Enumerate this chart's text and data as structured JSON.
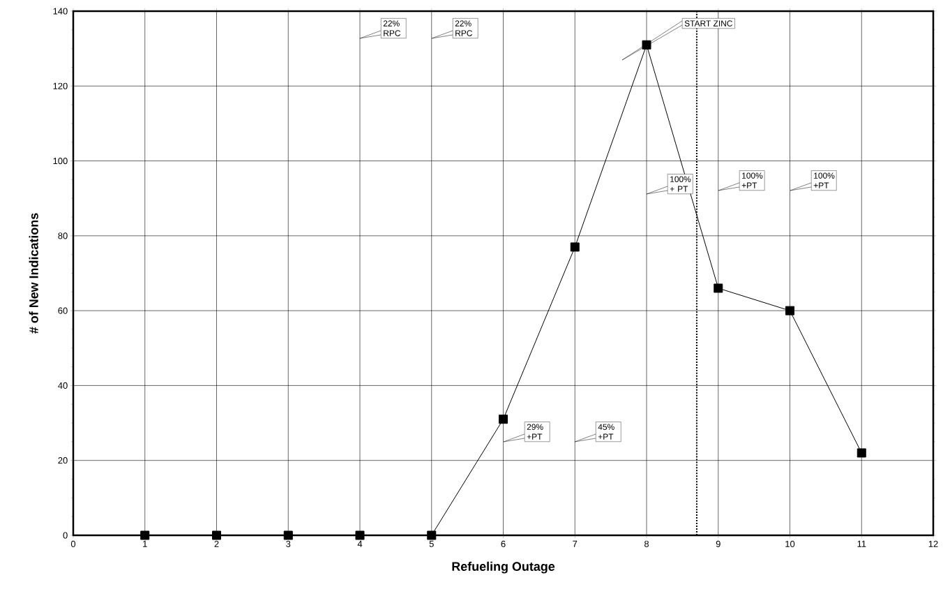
{
  "chart_data": {
    "type": "line",
    "xlabel": "Refueling Outage",
    "ylabel": "# of New Indications",
    "x": [
      1,
      2,
      3,
      4,
      5,
      6,
      7,
      8,
      9,
      10,
      11
    ],
    "series": [
      {
        "color": "#000000",
        "values": [
          0,
          0,
          0,
          0,
          0,
          31,
          77,
          131,
          66,
          60,
          22
        ]
      }
    ],
    "xlim": [
      0,
      12
    ],
    "xticks": [
      0,
      1,
      2,
      3,
      4,
      5,
      6,
      7,
      8,
      9,
      10,
      11,
      12
    ],
    "ylim": [
      0,
      140
    ],
    "yticks": [
      0,
      20,
      40,
      60,
      80,
      100,
      120,
      140
    ],
    "grid": true,
    "marker": "square",
    "line_style": "solid",
    "ref_lines": [
      {
        "axis": "x",
        "value": 8.7,
        "color": "#000000",
        "line_style": "dotted"
      }
    ],
    "annotations": [
      "22% RPC",
      "22% RPC",
      "START ZINC",
      "100% + PT",
      "100% +PT",
      "100% +PT",
      "29% +PT",
      "45% +PT"
    ]
  }
}
